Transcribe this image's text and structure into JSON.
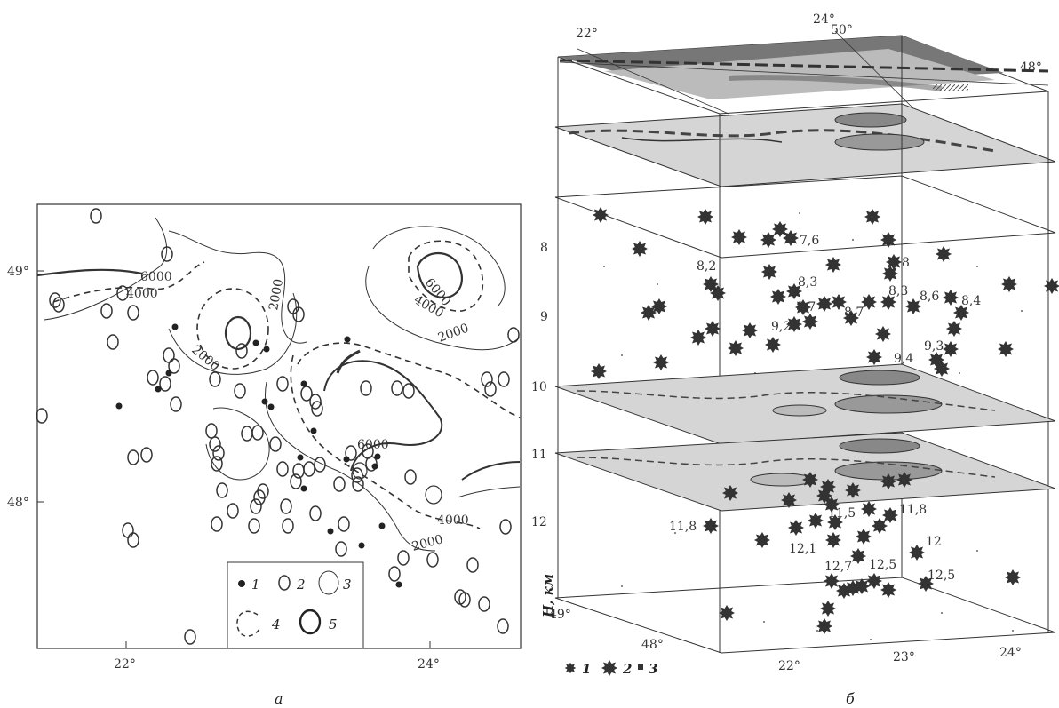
{
  "panel_a": {
    "caption": "a",
    "lat_labels": [
      "49°",
      "48°"
    ],
    "lon_labels": [
      "22°",
      "24°"
    ],
    "contour_labels": [
      "6000",
      "4000",
      "2000",
      "2000",
      "6000",
      "4000",
      "2000",
      "4000",
      "6000",
      "4000",
      "2000"
    ],
    "legend": [
      "1",
      "2",
      "3",
      "4",
      "5"
    ]
  },
  "panel_b": {
    "caption": "б",
    "top_lon_labels": [
      "22°",
      "24°",
      "50°",
      "48°"
    ],
    "depth_ticks": [
      "8",
      "9",
      "10",
      "11",
      "12"
    ],
    "depth_axis_label": "H, км",
    "base_lat_labels": [
      "49°",
      "48°"
    ],
    "base_lon_labels": [
      "22°",
      "23°",
      "24°"
    ],
    "upper_values": [
      "7,6",
      "8,2",
      "8",
      "8,3",
      "8,3",
      "8,6",
      "8,4",
      "8,7",
      "8,7",
      "9,2",
      "9,3",
      "9,4"
    ],
    "lower_values": [
      "11,8",
      "11,5",
      "11,8",
      "12,1",
      "12",
      "12,7",
      "12,5",
      "12,5"
    ],
    "legend": [
      "1",
      "2",
      "3"
    ]
  }
}
